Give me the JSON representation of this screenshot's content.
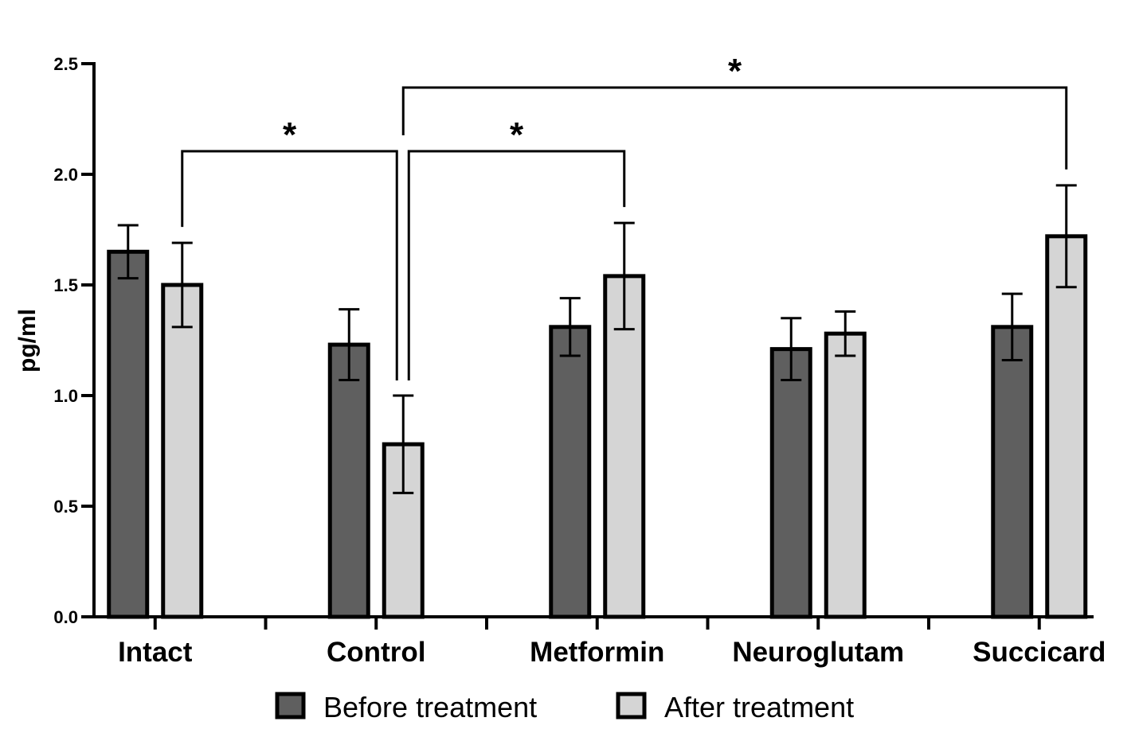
{
  "chart_data": {
    "type": "bar",
    "title": "",
    "xlabel": "",
    "ylabel": "pg/ml",
    "ylim": [
      0,
      2.5
    ],
    "yticks": [
      "0.0",
      "0.5",
      "1.0",
      "1.5",
      "2.0",
      "2.5"
    ],
    "grid": false,
    "categories": [
      "Intact",
      "Control",
      "Metformin",
      "Neuroglutam",
      "Succicard"
    ],
    "series": [
      {
        "name": "Before treatment",
        "color": "#5f5f5f",
        "values": [
          1.65,
          1.23,
          1.31,
          1.21,
          1.31
        ],
        "errors": [
          0.12,
          0.16,
          0.13,
          0.14,
          0.15
        ]
      },
      {
        "name": "After treatment",
        "color": "#d5d5d5",
        "values": [
          1.5,
          0.78,
          1.54,
          1.28,
          1.72
        ],
        "errors": [
          0.19,
          0.22,
          0.24,
          0.1,
          0.23
        ]
      }
    ],
    "legend": {
      "position": "bottom",
      "entries": [
        "Before treatment",
        "After treatment"
      ]
    },
    "significance": [
      {
        "from": {
          "category": "Intact",
          "series": "After treatment"
        },
        "to": {
          "category": "Control",
          "series": "After treatment"
        },
        "label": "*",
        "level": 1
      },
      {
        "from": {
          "category": "Control",
          "series": "After treatment"
        },
        "to": {
          "category": "Metformin",
          "series": "After treatment"
        },
        "label": "*",
        "level": 1
      },
      {
        "from": {
          "category": "Control",
          "series": "After treatment"
        },
        "to": {
          "category": "Succicard",
          "series": "After treatment"
        },
        "label": "*",
        "level": 2
      }
    ]
  }
}
